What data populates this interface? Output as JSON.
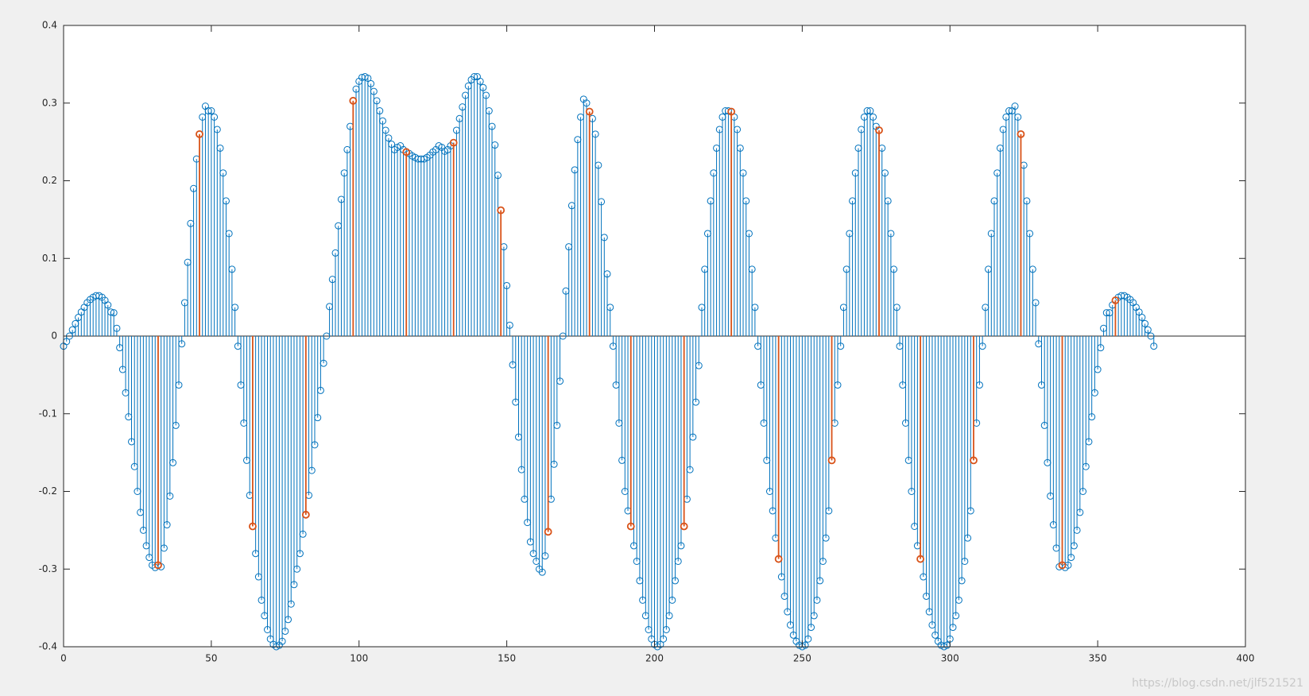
{
  "chart_data": {
    "type": "stem",
    "xlim": [
      0,
      400
    ],
    "xticks": [
      0,
      50,
      100,
      150,
      200,
      250,
      300,
      350,
      400
    ],
    "ylim": [
      -0.4,
      0.4
    ],
    "yticks": [
      -0.4,
      -0.3,
      -0.2,
      -0.1,
      0,
      0.1,
      0.2,
      0.3,
      0.4
    ],
    "baseline": 0,
    "annotation": "https://blog.csdn.net/jlf521521",
    "series": [
      {
        "color": "#0072bd",
        "x": [
          0,
          1,
          2,
          3,
          4,
          5,
          6,
          7,
          8,
          9,
          10,
          11,
          12,
          13,
          14,
          15,
          16,
          17,
          18,
          19,
          20,
          21,
          22,
          23,
          24,
          25,
          26,
          27,
          28,
          29,
          30,
          31,
          32,
          33,
          34,
          35,
          36,
          37,
          38,
          39,
          40,
          41,
          42,
          43,
          44,
          45,
          46,
          47,
          48,
          49,
          50,
          51,
          52,
          53,
          54,
          55,
          56,
          57,
          58,
          59,
          60,
          61,
          62,
          63,
          64,
          65,
          66,
          67,
          68,
          69,
          70,
          71,
          72,
          73,
          74,
          75,
          76,
          77,
          78,
          79,
          80,
          81,
          82,
          83,
          84,
          85,
          86,
          87,
          88,
          89,
          90,
          91,
          92,
          93,
          94,
          95,
          96,
          97,
          98,
          99,
          100,
          101,
          102,
          103,
          104,
          105,
          106,
          107,
          108,
          109,
          110,
          111,
          112,
          113,
          114,
          115,
          116,
          117,
          118,
          119,
          120,
          121,
          122,
          123,
          124,
          125,
          126,
          127,
          128,
          129,
          130,
          131,
          132,
          133,
          134,
          135,
          136,
          137,
          138,
          139,
          140,
          141,
          142,
          143,
          144,
          145,
          146,
          147,
          148,
          149,
          150,
          151,
          152,
          153,
          154,
          155,
          156,
          157,
          158,
          159,
          160,
          161,
          162,
          163,
          164,
          165,
          166,
          167,
          168,
          169,
          170,
          171,
          172,
          173,
          174,
          175,
          176,
          177,
          178,
          179,
          180,
          181,
          182,
          183,
          184,
          185,
          186,
          187,
          188,
          189,
          190,
          191,
          192,
          193,
          194,
          195,
          196,
          197,
          198,
          199,
          200,
          201,
          202,
          203,
          204,
          205,
          206,
          207,
          208,
          209,
          210,
          211,
          212,
          213,
          214,
          215,
          216,
          217,
          218,
          219,
          220,
          221,
          222,
          223,
          224,
          225,
          226,
          227,
          228,
          229,
          230,
          231,
          232,
          233,
          234,
          235,
          236,
          237,
          238,
          239,
          240,
          241,
          242,
          243,
          244,
          245,
          246,
          247,
          248,
          249,
          250,
          251,
          252,
          253,
          254,
          255,
          256,
          257,
          258,
          259,
          260,
          261,
          262,
          263,
          264,
          265,
          266,
          267,
          268,
          269,
          270,
          271,
          272,
          273,
          274,
          275,
          276,
          277,
          278,
          279,
          280,
          281,
          282,
          283,
          284,
          285,
          286,
          287,
          288,
          289,
          290,
          291,
          292,
          293,
          294,
          295,
          296,
          297,
          298,
          299,
          300,
          301,
          302,
          303,
          304,
          305,
          306,
          307,
          308,
          309,
          310,
          311,
          312,
          313,
          314,
          315,
          316,
          317,
          318,
          319,
          320,
          321,
          322,
          323,
          324,
          325,
          326,
          327,
          328,
          329,
          330,
          331,
          332,
          333,
          334,
          335,
          336,
          337,
          338,
          339,
          340,
          341,
          342,
          343,
          344,
          345,
          346,
          347,
          348,
          349,
          350,
          351,
          352,
          353,
          354,
          355,
          356,
          357,
          358,
          359,
          360,
          361,
          362,
          363,
          364,
          365,
          366,
          367,
          368,
          369
        ],
        "values": [
          -0.013,
          -0.007,
          0,
          0.008,
          0.016,
          0.024,
          0.031,
          0.037,
          0.043,
          0.047,
          0.05,
          0.052,
          0.052,
          0.05,
          0.046,
          0.04,
          0.031,
          0.03,
          0.01,
          -0.015,
          -0.043,
          -0.073,
          -0.104,
          -0.136,
          -0.168,
          -0.2,
          -0.227,
          -0.25,
          -0.27,
          -0.285,
          -0.295,
          -0.298,
          -0.295,
          -0.297,
          -0.273,
          -0.243,
          -0.206,
          -0.163,
          -0.115,
          -0.063,
          -0.01,
          0.043,
          0.095,
          0.145,
          0.19,
          0.228,
          0.26,
          0.282,
          0.296,
          0.29,
          0.29,
          0.282,
          0.266,
          0.242,
          0.21,
          0.174,
          0.132,
          0.086,
          0.037,
          -0.013,
          -0.063,
          -0.112,
          -0.16,
          -0.205,
          -0.245,
          -0.28,
          -0.31,
          -0.34,
          -0.36,
          -0.378,
          -0.39,
          -0.397,
          -0.4,
          -0.398,
          -0.393,
          -0.38,
          -0.365,
          -0.345,
          -0.32,
          -0.3,
          -0.28,
          -0.255,
          -0.23,
          -0.205,
          -0.173,
          -0.14,
          -0.105,
          -0.07,
          -0.035,
          0,
          0.038,
          0.073,
          0.107,
          0.142,
          0.176,
          0.21,
          0.24,
          0.27,
          0.303,
          0.318,
          0.328,
          0.333,
          0.334,
          0.332,
          0.325,
          0.315,
          0.303,
          0.29,
          0.277,
          0.265,
          0.255,
          0.247,
          0.24,
          0.243,
          0.245,
          0.24,
          0.237,
          0.235,
          0.232,
          0.23,
          0.228,
          0.228,
          0.228,
          0.23,
          0.233,
          0.237,
          0.24,
          0.245,
          0.243,
          0.238,
          0.24,
          0.245,
          0.249,
          0.265,
          0.28,
          0.295,
          0.31,
          0.322,
          0.33,
          0.334,
          0.334,
          0.328,
          0.32,
          0.31,
          0.29,
          0.27,
          0.246,
          0.207,
          0.162,
          0.115,
          0.065,
          0.014,
          -0.037,
          -0.085,
          -0.13,
          -0.172,
          -0.21,
          -0.24,
          -0.265,
          -0.28,
          -0.29,
          -0.3,
          -0.304,
          -0.283,
          -0.252,
          -0.21,
          -0.165,
          -0.115,
          -0.058,
          0,
          0.058,
          0.115,
          0.168,
          0.214,
          0.253,
          0.282,
          0.305,
          0.3,
          0.289,
          0.28,
          0.26,
          0.22,
          0.173,
          0.127,
          0.08,
          0.037,
          -0.013,
          -0.063,
          -0.112,
          -0.16,
          -0.2,
          -0.225,
          -0.245,
          -0.27,
          -0.29,
          -0.315,
          -0.34,
          -0.36,
          -0.378,
          -0.39,
          -0.397,
          -0.4,
          -0.397,
          -0.39,
          -0.378,
          -0.36,
          -0.34,
          -0.315,
          -0.29,
          -0.27,
          -0.245,
          -0.21,
          -0.172,
          -0.13,
          -0.085,
          -0.038,
          0.037,
          0.086,
          0.132,
          0.174,
          0.21,
          0.242,
          0.266,
          0.282,
          0.29,
          0.29,
          0.289,
          0.282,
          0.266,
          0.242,
          0.21,
          0.174,
          0.132,
          0.086,
          0.037,
          -0.013,
          -0.063,
          -0.112,
          -0.16,
          -0.2,
          -0.225,
          -0.26,
          -0.287,
          -0.31,
          -0.335,
          -0.355,
          -0.372,
          -0.385,
          -0.393,
          -0.398,
          -0.4,
          -0.398,
          -0.39,
          -0.375,
          -0.36,
          -0.34,
          -0.315,
          -0.29,
          -0.26,
          -0.225,
          -0.16,
          -0.112,
          -0.063,
          -0.013,
          0.037,
          0.086,
          0.132,
          0.174,
          0.21,
          0.242,
          0.266,
          0.282,
          0.29,
          0.29,
          0.282,
          0.27,
          0.265,
          0.242,
          0.21,
          0.174,
          0.132,
          0.086,
          0.037,
          -0.013,
          -0.063,
          -0.112,
          -0.16,
          -0.2,
          -0.245,
          -0.27,
          -0.287,
          -0.31,
          -0.335,
          -0.355,
          -0.372,
          -0.385,
          -0.393,
          -0.398,
          -0.4,
          -0.398,
          -0.39,
          -0.375,
          -0.36,
          -0.34,
          -0.315,
          -0.29,
          -0.26,
          -0.225,
          -0.16,
          -0.112,
          -0.063,
          -0.013,
          0.037,
          0.086,
          0.132,
          0.174,
          0.21,
          0.242,
          0.266,
          0.282,
          0.29,
          0.29,
          0.296,
          0.282,
          0.26,
          0.22,
          0.174,
          0.132,
          0.086,
          0.043,
          -0.01,
          -0.063,
          -0.115,
          -0.163,
          -0.206,
          -0.243,
          -0.273,
          -0.297,
          -0.295,
          -0.298,
          -0.295,
          -0.285,
          -0.27,
          -0.25,
          -0.227,
          -0.2,
          -0.168,
          -0.136,
          -0.104,
          -0.073,
          -0.043,
          -0.015,
          0.01,
          0.03,
          0.03,
          0.04,
          0.046,
          0.05,
          0.052,
          0.052,
          0.05,
          0.047,
          0.043,
          0.037,
          0.031,
          0.024,
          0.016,
          0.008,
          0,
          -0.013
        ]
      },
      {
        "color": "#d95319",
        "x": [
          32,
          46,
          64,
          82,
          98,
          116,
          132,
          148,
          164,
          178,
          192,
          210,
          226,
          242,
          260,
          276,
          290,
          308,
          324,
          338,
          356
        ],
        "values": [
          -0.295,
          0.26,
          -0.245,
          -0.23,
          0.303,
          0.237,
          0.249,
          0.162,
          -0.252,
          0.289,
          -0.245,
          -0.245,
          0.289,
          -0.287,
          -0.16,
          0.265,
          -0.287,
          -0.16,
          0.26,
          -0.295,
          0.046
        ]
      }
    ]
  }
}
